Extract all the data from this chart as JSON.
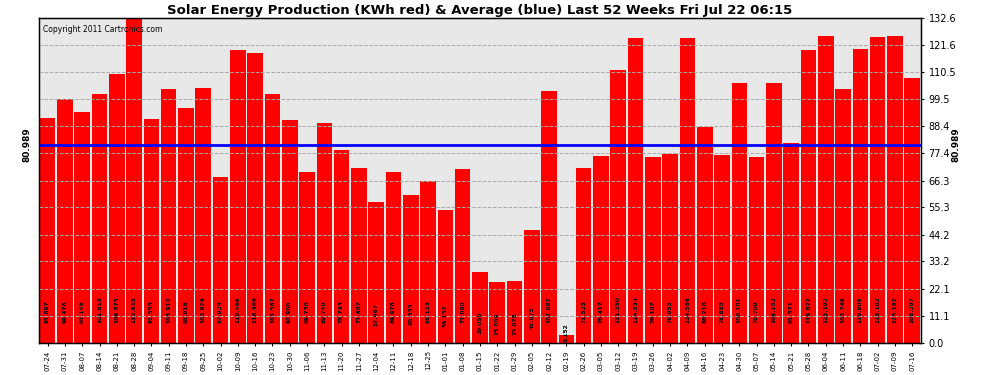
{
  "title": "Solar Energy Production (KWh red) & Average (blue) Last 52 Weeks Fri Jul 22 06:15",
  "copyright": "Copyright 2011 Cartronics.com",
  "average_label": "80.989",
  "average_value": 80.989,
  "bar_color": "#FF0000",
  "avg_line_color": "#0000FF",
  "background_color": "#FFFFFF",
  "grid_color": "#AAAAAA",
  "y_ticks": [
    0.0,
    11.1,
    22.1,
    33.2,
    44.2,
    55.3,
    66.3,
    77.4,
    88.4,
    99.5,
    110.5,
    121.6,
    132.6
  ],
  "xlabels": [
    "07-24",
    "07-31",
    "08-07",
    "08-14",
    "08-21",
    "08-28",
    "09-04",
    "09-11",
    "09-18",
    "09-25",
    "10-02",
    "10-09",
    "10-16",
    "10-23",
    "10-30",
    "11-06",
    "11-13",
    "11-20",
    "11-27",
    "12-04",
    "12-11",
    "12-18",
    "12-25",
    "01-01",
    "01-08",
    "01-15",
    "01-22",
    "01-29",
    "02-05",
    "02-12",
    "02-19",
    "02-26",
    "03-05",
    "03-12",
    "03-19",
    "03-26",
    "04-02",
    "04-09",
    "04-16",
    "04-23",
    "04-30",
    "05-07",
    "05-14",
    "05-21",
    "05-28",
    "06-04",
    "06-11",
    "06-18",
    "07-02",
    "07-09",
    "07-16"
  ],
  "values": [
    91.897,
    99.476,
    94.146,
    101.613,
    109.875,
    132.615,
    91.355,
    103.912,
    95.918,
    103.924,
    67.924,
    119.466,
    118.466,
    101.567,
    90.9,
    69.73,
    89.749,
    78.743,
    71.467,
    57.467,
    69.978,
    60.333,
    66.133,
    54.152,
    71.09,
    29.05,
    25.009,
    25.078,
    45.975,
    102.692,
    3.152,
    71.525,
    76.417,
    111.35,
    124.534,
    76.107,
    76.953,
    124.586,
    88.216,
    76.885,
    106.101,
    75.709,
    106.152,
    81.571,
    119.822,
    125.192,
    103.749,
    119.906,
    125.102,
    125.192,
    108.297
  ],
  "bar_value_labels": [
    "91.897",
    "99.476",
    "94.146",
    "101.613",
    "109.875",
    "132.615",
    "91.355",
    "103.912",
    "95.918",
    "103.924",
    "67.924",
    "119.466",
    "118.466",
    "101.567",
    "90.900",
    "69.730",
    "89.749",
    "78.743",
    "71.467",
    "57.467",
    "69.978",
    "60.333",
    "66.133",
    "54.152",
    "71.090",
    "29.050",
    "25.009",
    "25.078",
    "45.975",
    "102.692",
    "3.152",
    "71.525",
    "76.417",
    "111.350",
    "124.534",
    "76.107",
    "76.953",
    "124.586",
    "88.216",
    "76.885",
    "106.101",
    "75.709",
    "106.152",
    "81.571",
    "119.822",
    "125.192",
    "103.749",
    "119.906",
    "125.102",
    "125.192",
    "108.297"
  ],
  "figsize": [
    9.9,
    3.75
  ],
  "dpi": 100
}
